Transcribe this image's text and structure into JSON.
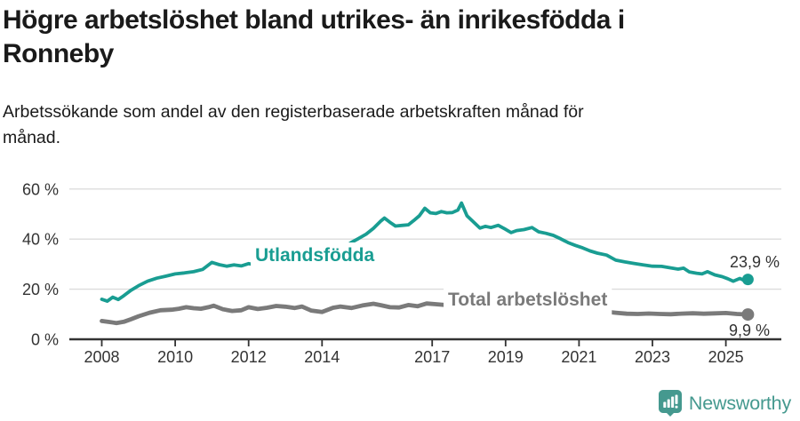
{
  "header": {
    "title": "Högre arbetslöshet bland utrikes- än inrikesfödda i\nRonneby",
    "subtitle": "Arbetssökande som andel av den registerbaserade arbetskraften månad för\nmånad."
  },
  "chart_data": {
    "type": "line",
    "unit": "%",
    "title": "Högre arbetslöshet bland utrikes- än inrikesfödda i Ronneby",
    "xlabel": "",
    "ylabel": "",
    "x_range": [
      2008,
      2025.6
    ],
    "ylim": [
      0,
      60
    ],
    "yticks": [
      0,
      20,
      40,
      60
    ],
    "ytick_labels": [
      "0 %",
      "20 %",
      "40 %",
      "60 %"
    ],
    "xticks": [
      2008,
      2010,
      2012,
      2014,
      2017,
      2019,
      2021,
      2023,
      2025
    ],
    "grid": "horizontal-light",
    "legend_position": "inline-labels",
    "axis_color": "#333333",
    "grid_color": "#dcdcdc",
    "series": [
      {
        "name": "Utlandsfödda",
        "color": "#199d92",
        "end_value": 23.9,
        "end_label": "23,9 %",
        "points": [
          [
            2008.0,
            16.0
          ],
          [
            2008.15,
            15.2
          ],
          [
            2008.3,
            16.8
          ],
          [
            2008.45,
            15.9
          ],
          [
            2008.6,
            17.4
          ],
          [
            2008.8,
            19.6
          ],
          [
            2009.0,
            21.4
          ],
          [
            2009.25,
            23.2
          ],
          [
            2009.5,
            24.4
          ],
          [
            2009.75,
            25.2
          ],
          [
            2010.0,
            26.1
          ],
          [
            2010.25,
            26.5
          ],
          [
            2010.5,
            27.0
          ],
          [
            2010.75,
            27.9
          ],
          [
            2011.0,
            30.7
          ],
          [
            2011.2,
            29.8
          ],
          [
            2011.4,
            29.2
          ],
          [
            2011.6,
            29.7
          ],
          [
            2011.8,
            29.3
          ],
          [
            2012.0,
            30.2
          ],
          [
            2012.2,
            29.6
          ],
          [
            2012.4,
            30.3
          ],
          [
            2012.6,
            29.6
          ],
          [
            2012.8,
            30.1
          ],
          [
            2013.0,
            30.7
          ],
          [
            2013.2,
            30.0
          ],
          [
            2013.4,
            30.5
          ],
          [
            2013.6,
            29.9
          ],
          [
            2013.8,
            30.3
          ],
          [
            2014.0,
            30.0
          ],
          [
            2014.2,
            31.0
          ],
          [
            2014.4,
            33.6
          ],
          [
            2014.6,
            36.6
          ],
          [
            2014.8,
            38.7
          ],
          [
            2015.0,
            40.3
          ],
          [
            2015.2,
            42.0
          ],
          [
            2015.4,
            44.3
          ],
          [
            2015.6,
            47.2
          ],
          [
            2015.7,
            48.4
          ],
          [
            2015.85,
            46.7
          ],
          [
            2016.0,
            45.2
          ],
          [
            2016.2,
            45.5
          ],
          [
            2016.35,
            45.7
          ],
          [
            2016.5,
            47.4
          ],
          [
            2016.65,
            49.3
          ],
          [
            2016.8,
            52.3
          ],
          [
            2016.95,
            50.5
          ],
          [
            2017.1,
            50.2
          ],
          [
            2017.25,
            51.0
          ],
          [
            2017.4,
            50.5
          ],
          [
            2017.55,
            50.6
          ],
          [
            2017.7,
            51.6
          ],
          [
            2017.8,
            54.4
          ],
          [
            2017.95,
            49.3
          ],
          [
            2018.1,
            47.2
          ],
          [
            2018.3,
            44.4
          ],
          [
            2018.45,
            45.1
          ],
          [
            2018.6,
            44.6
          ],
          [
            2018.8,
            45.5
          ],
          [
            2019.0,
            43.9
          ],
          [
            2019.15,
            42.6
          ],
          [
            2019.3,
            43.4
          ],
          [
            2019.5,
            43.8
          ],
          [
            2019.72,
            44.6
          ],
          [
            2019.9,
            42.9
          ],
          [
            2020.1,
            42.3
          ],
          [
            2020.3,
            41.5
          ],
          [
            2020.5,
            40.1
          ],
          [
            2020.7,
            38.6
          ],
          [
            2020.9,
            37.5
          ],
          [
            2021.1,
            36.5
          ],
          [
            2021.3,
            35.3
          ],
          [
            2021.5,
            34.4
          ],
          [
            2021.75,
            33.6
          ],
          [
            2022.0,
            31.6
          ],
          [
            2022.25,
            30.9
          ],
          [
            2022.5,
            30.3
          ],
          [
            2022.75,
            29.7
          ],
          [
            2023.0,
            29.2
          ],
          [
            2023.25,
            29.1
          ],
          [
            2023.5,
            28.5
          ],
          [
            2023.7,
            28.0
          ],
          [
            2023.85,
            28.4
          ],
          [
            2024.0,
            26.9
          ],
          [
            2024.2,
            26.4
          ],
          [
            2024.35,
            26.1
          ],
          [
            2024.5,
            27.0
          ],
          [
            2024.7,
            25.7
          ],
          [
            2024.9,
            25.0
          ],
          [
            2025.05,
            24.2
          ],
          [
            2025.2,
            23.2
          ],
          [
            2025.38,
            24.3
          ],
          [
            2025.5,
            23.5
          ],
          [
            2025.6,
            23.9
          ]
        ]
      },
      {
        "name": "Total arbetslöshet",
        "color": "#7a7a7a",
        "end_value": 9.9,
        "end_label": "9,9 %",
        "points": [
          [
            2008.0,
            7.3
          ],
          [
            2008.2,
            6.9
          ],
          [
            2008.4,
            6.5
          ],
          [
            2008.6,
            7.0
          ],
          [
            2008.8,
            8.0
          ],
          [
            2009.0,
            9.2
          ],
          [
            2009.3,
            10.6
          ],
          [
            2009.6,
            11.6
          ],
          [
            2009.9,
            11.8
          ],
          [
            2010.1,
            12.2
          ],
          [
            2010.3,
            12.8
          ],
          [
            2010.5,
            12.4
          ],
          [
            2010.7,
            12.2
          ],
          [
            2010.9,
            12.8
          ],
          [
            2011.05,
            13.4
          ],
          [
            2011.3,
            12.0
          ],
          [
            2011.55,
            11.3
          ],
          [
            2011.8,
            11.6
          ],
          [
            2012.0,
            12.8
          ],
          [
            2012.25,
            12.1
          ],
          [
            2012.5,
            12.6
          ],
          [
            2012.75,
            13.3
          ],
          [
            2013.0,
            13.0
          ],
          [
            2013.25,
            12.5
          ],
          [
            2013.45,
            13.1
          ],
          [
            2013.7,
            11.5
          ],
          [
            2014.0,
            10.9
          ],
          [
            2014.3,
            12.6
          ],
          [
            2014.5,
            13.1
          ],
          [
            2014.8,
            12.5
          ],
          [
            2015.1,
            13.5
          ],
          [
            2015.4,
            14.2
          ],
          [
            2015.6,
            13.6
          ],
          [
            2015.85,
            12.8
          ],
          [
            2016.1,
            12.7
          ],
          [
            2016.35,
            13.7
          ],
          [
            2016.6,
            13.2
          ],
          [
            2016.85,
            14.3
          ],
          [
            2017.1,
            14.0
          ],
          [
            2017.35,
            13.7
          ],
          [
            2017.6,
            13.5
          ],
          [
            2018.0,
            13.1
          ],
          [
            2018.4,
            12.6
          ],
          [
            2018.8,
            12.2
          ],
          [
            2019.2,
            11.9
          ],
          [
            2019.6,
            11.7
          ],
          [
            2020.0,
            12.1
          ],
          [
            2020.4,
            12.7
          ],
          [
            2020.8,
            12.3
          ],
          [
            2021.2,
            11.8
          ],
          [
            2021.6,
            11.2
          ],
          [
            2022.0,
            10.6
          ],
          [
            2022.3,
            10.2
          ],
          [
            2022.6,
            10.1
          ],
          [
            2022.9,
            10.3
          ],
          [
            2023.2,
            10.1
          ],
          [
            2023.5,
            10.0
          ],
          [
            2023.8,
            10.25
          ],
          [
            2024.1,
            10.4
          ],
          [
            2024.4,
            10.2
          ],
          [
            2024.7,
            10.35
          ],
          [
            2025.0,
            10.5
          ],
          [
            2025.3,
            10.1
          ],
          [
            2025.6,
            9.9
          ]
        ]
      }
    ]
  },
  "footer": {
    "brand": "Newsworthy",
    "brand_color": "#45998f",
    "logo_icon": "newsworthy-bar-chart-bubble-icon"
  }
}
